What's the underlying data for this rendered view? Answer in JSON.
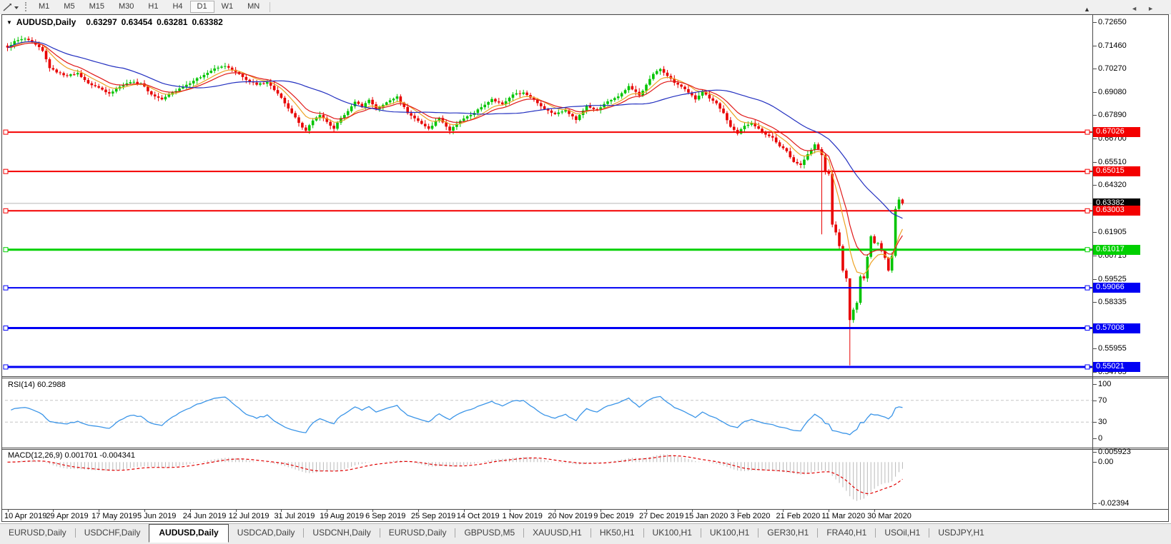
{
  "toolbar": {
    "timeframes": [
      "M1",
      "M5",
      "M15",
      "M30",
      "H1",
      "H4",
      "D1",
      "W1",
      "MN"
    ],
    "active_timeframe": "D1"
  },
  "chart": {
    "marker": "▼",
    "symbol": "AUDUSD,Daily",
    "open": "0.63297",
    "high": "0.63454",
    "low": "0.63281",
    "close": "0.63382"
  },
  "price_axis": {
    "ticks": [
      "0.72650",
      "0.71460",
      "0.70270",
      "0.69080",
      "0.67890",
      "0.66700",
      "0.65510",
      "0.64320",
      "0.61905",
      "0.60715",
      "0.59525",
      "0.58335",
      "0.55955",
      "0.54765"
    ],
    "badges": [
      {
        "label": "0.67026",
        "bg": "#f40000",
        "fg": "#ffffff"
      },
      {
        "label": "0.65015",
        "bg": "#f40000",
        "fg": "#ffffff"
      },
      {
        "label": "0.63382",
        "bg": "#000000",
        "fg": "#ffffff"
      },
      {
        "label": "0.63003",
        "bg": "#f40000",
        "fg": "#ffffff"
      },
      {
        "label": "0.61017",
        "bg": "#00d000",
        "fg": "#ffffff"
      },
      {
        "label": "0.59066",
        "bg": "#0000f4",
        "fg": "#ffffff"
      },
      {
        "label": "0.57008",
        "bg": "#0000f4",
        "fg": "#ffffff"
      },
      {
        "label": "0.55021",
        "bg": "#0000f4",
        "fg": "#ffffff"
      }
    ],
    "scale_arrow": "▲"
  },
  "rsi_panel": {
    "label": "RSI(14) 60.2988",
    "ticks": [
      "100",
      "70",
      "30",
      "0"
    ]
  },
  "macd_panel": {
    "label": "MACD(12,26,9) 0.001701 -0.004341",
    "ticks": [
      "0.005923",
      "0.00",
      "-0.02394"
    ]
  },
  "x_axis": {
    "dates": [
      "10 Apr 2019",
      "29 Apr 2019",
      "17 May 2019",
      "5 Jun 2019",
      "24 Jun 2019",
      "12 Jul 2019",
      "31 Jul 2019",
      "19 Aug 2019",
      "6 Sep 2019",
      "25 Sep 2019",
      "14 Oct 2019",
      "1 Nov 2019",
      "20 Nov 2019",
      "9 Dec 2019",
      "27 Dec 2019",
      "15 Jan 2020",
      "3 Feb 2020",
      "21 Feb 2020",
      "11 Mar 2020",
      "30 Mar 2020"
    ]
  },
  "tab_bar": {
    "tabs": [
      "EURUSD,Daily",
      "USDCHF,Daily",
      "AUDUSD,Daily",
      "USDCAD,Daily",
      "USDCNH,Daily",
      "EURUSD,Daily",
      "GBPUSD,M5",
      "XAUUSD,H1",
      "HK50,H1",
      "UK100,H1",
      "UK100,H1",
      "GER30,H1",
      "FRA40,H1",
      "USOil,H1",
      "USDJPY,H1"
    ],
    "active_index": 2,
    "scroll_left": "◄",
    "scroll_right": "►"
  },
  "chart_data": {
    "type": "candlestick",
    "symbol": "AUDUSD",
    "timeframe": "Daily",
    "title": "AUDUSD,Daily 0.63297 0.63454 0.63281 0.63382",
    "ohlc_display": {
      "open": 0.63297,
      "high": 0.63454,
      "low": 0.63281,
      "close": 0.63382
    },
    "y_range": [
      0.54765,
      0.7265
    ],
    "x_tick_dates": [
      "10 Apr 2019",
      "29 Apr 2019",
      "17 May 2019",
      "5 Jun 2019",
      "24 Jun 2019",
      "12 Jul 2019",
      "31 Jul 2019",
      "19 Aug 2019",
      "6 Sep 2019",
      "25 Sep 2019",
      "14 Oct 2019",
      "1 Nov 2019",
      "20 Nov 2019",
      "9 Dec 2019",
      "27 Dec 2019",
      "15 Jan 2020",
      "3 Feb 2020",
      "21 Feb 2020",
      "11 Mar 2020",
      "30 Mar 2020"
    ],
    "bars_per_tick": 13,
    "bar_count": 256,
    "close_anchors": [
      [
        0,
        0.7135
      ],
      [
        2,
        0.7168
      ],
      [
        5,
        0.718
      ],
      [
        8,
        0.715
      ],
      [
        10,
        0.7118
      ],
      [
        12,
        0.703
      ],
      [
        14,
        0.7008
      ],
      [
        17,
        0.699
      ],
      [
        20,
        0.7005
      ],
      [
        23,
        0.6952
      ],
      [
        26,
        0.693
      ],
      [
        29,
        0.69
      ],
      [
        32,
        0.6935
      ],
      [
        35,
        0.6958
      ],
      [
        38,
        0.6952
      ],
      [
        41,
        0.6895
      ],
      [
        44,
        0.687
      ],
      [
        47,
        0.6905
      ],
      [
        50,
        0.6935
      ],
      [
        53,
        0.6965
      ],
      [
        56,
        0.6995
      ],
      [
        59,
        0.7028
      ],
      [
        62,
        0.704
      ],
      [
        65,
        0.701
      ],
      [
        68,
        0.697
      ],
      [
        71,
        0.6945
      ],
      [
        74,
        0.6958
      ],
      [
        77,
        0.69
      ],
      [
        79,
        0.685
      ],
      [
        81,
        0.68
      ],
      [
        83,
        0.675
      ],
      [
        85,
        0.671
      ],
      [
        87,
        0.6762
      ],
      [
        89,
        0.679
      ],
      [
        91,
        0.6755
      ],
      [
        93,
        0.672
      ],
      [
        95,
        0.6775
      ],
      [
        97,
        0.681
      ],
      [
        99,
        0.6858
      ],
      [
        101,
        0.683
      ],
      [
        103,
        0.6868
      ],
      [
        105,
        0.682
      ],
      [
        108,
        0.6855
      ],
      [
        111,
        0.6885
      ],
      [
        114,
        0.68
      ],
      [
        117,
        0.676
      ],
      [
        120,
        0.672
      ],
      [
        123,
        0.6775
      ],
      [
        126,
        0.671
      ],
      [
        129,
        0.676
      ],
      [
        132,
        0.679
      ],
      [
        135,
        0.683
      ],
      [
        138,
        0.6872
      ],
      [
        141,
        0.6845
      ],
      [
        144,
        0.6895
      ],
      [
        147,
        0.6905
      ],
      [
        150,
        0.6868
      ],
      [
        153,
        0.682
      ],
      [
        156,
        0.6795
      ],
      [
        159,
        0.6815
      ],
      [
        162,
        0.6765
      ],
      [
        165,
        0.6838
      ],
      [
        168,
        0.6815
      ],
      [
        171,
        0.686
      ],
      [
        174,
        0.6885
      ],
      [
        177,
        0.6938
      ],
      [
        180,
        0.689
      ],
      [
        182,
        0.6945
      ],
      [
        184,
        0.7
      ],
      [
        186,
        0.7025
      ],
      [
        188,
        0.699
      ],
      [
        190,
        0.6955
      ],
      [
        192,
        0.6935
      ],
      [
        194,
        0.6905
      ],
      [
        196,
        0.687
      ],
      [
        198,
        0.691
      ],
      [
        200,
        0.6875
      ],
      [
        202,
        0.685
      ],
      [
        204,
        0.68
      ],
      [
        206,
        0.673
      ],
      [
        208,
        0.6695
      ],
      [
        210,
        0.6735
      ],
      [
        212,
        0.675
      ],
      [
        214,
        0.672
      ],
      [
        216,
        0.669
      ],
      [
        218,
        0.6675
      ],
      [
        220,
        0.663
      ],
      [
        222,
        0.6605
      ],
      [
        224,
        0.655
      ],
      [
        226,
        0.6535
      ],
      [
        228,
        0.659
      ],
      [
        230,
        0.664
      ],
      [
        232,
        0.6585
      ],
      [
        233,
        0.65
      ],
      [
        234,
        0.649
      ],
      [
        235,
        0.623
      ],
      [
        236,
        0.619
      ],
      [
        237,
        0.612
      ],
      [
        238,
        0.5995
      ],
      [
        239,
        0.5955
      ],
      [
        240,
        0.5742
      ],
      [
        241,
        0.5795
      ],
      [
        242,
        0.583
      ],
      [
        243,
        0.5965
      ],
      [
        244,
        0.5955
      ],
      [
        245,
        0.6065
      ],
      [
        246,
        0.617
      ],
      [
        247,
        0.6135
      ],
      [
        248,
        0.6135
      ],
      [
        249,
        0.6095
      ],
      [
        250,
        0.606
      ],
      [
        251,
        0.5995
      ],
      [
        252,
        0.607
      ],
      [
        253,
        0.631
      ],
      [
        254,
        0.6358
      ],
      [
        255,
        0.6338
      ]
    ],
    "special_bars": [
      {
        "index": 232,
        "low": 0.618
      },
      {
        "index": 240,
        "low": 0.551,
        "high": 0.584
      }
    ],
    "candle_colors": {
      "up": "#00c400",
      "down": "#e80000"
    },
    "moving_averages": [
      {
        "type": "ema",
        "period": 8,
        "color": "#eda224",
        "name": "fast-ma"
      },
      {
        "type": "ema",
        "period": 13,
        "color": "#e01818",
        "name": "mid-ma"
      },
      {
        "type": "sma",
        "period": 34,
        "color": "#2330c0",
        "name": "slow-ma"
      }
    ],
    "horizontal_lines": [
      {
        "price": 0.67026,
        "color": "#f40000",
        "width": 2
      },
      {
        "price": 0.65015,
        "color": "#f40000",
        "width": 2
      },
      {
        "price": 0.63003,
        "color": "#f40000",
        "width": 2
      },
      {
        "price": 0.61017,
        "color": "#00d000",
        "width": 3
      },
      {
        "price": 0.59066,
        "color": "#0000f4",
        "width": 2
      },
      {
        "price": 0.57008,
        "color": "#0000f4",
        "width": 3
      },
      {
        "price": 0.55021,
        "color": "#0000f4",
        "width": 3
      }
    ],
    "current_price_line": {
      "price": 0.63382,
      "color": "#b6b6b6"
    },
    "rsi": {
      "period": 14,
      "last_value": 60.2988,
      "levels": [
        70,
        30
      ],
      "color": "#3b95e8",
      "range": [
        0,
        100
      ],
      "level_line_color": "#c6c6c6"
    },
    "macd": {
      "fast": 12,
      "slow": 26,
      "signal": 9,
      "last_macd": 0.001701,
      "last_signal": -0.004341,
      "axis_max": 0.005923,
      "axis_min": -0.02394,
      "hist_color": "#b9b9b9",
      "signal_color": "#e00000"
    }
  }
}
